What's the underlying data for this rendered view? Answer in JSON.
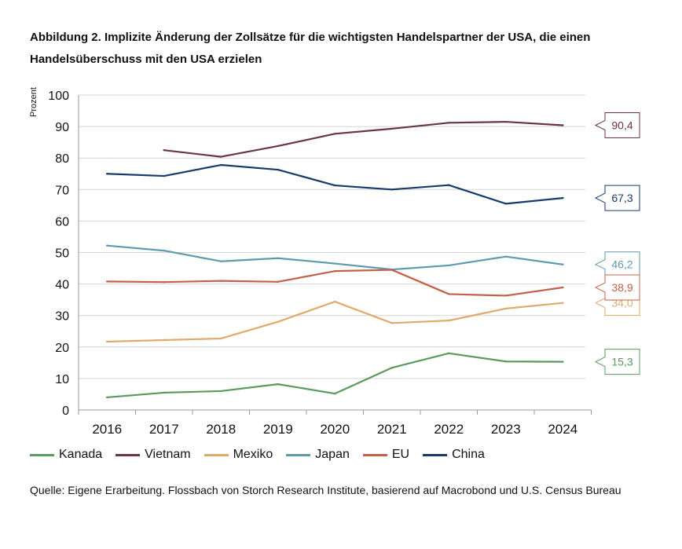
{
  "title": "Abbildung 2. Implizite Änderung der Zollsätze für die wichtigsten Handelspartner der USA, die einen Handelsüberschuss mit den USA erzielen",
  "source": "Quelle: Eigene Erarbeitung. Flossbach von Storch Research Institute, basierend auf Macrobond und U.S. Census Bureau",
  "chart_data": {
    "type": "line",
    "title": "Abbildung 2. Implizite Änderung der Zollsätze für die wichtigsten Handelspartner der USA, die einen Handelsüberschuss mit den USA erzielen",
    "xlabel": "",
    "ylabel": "Prozent",
    "ylim": [
      0,
      100
    ],
    "yticks": [
      "0",
      "10",
      "20",
      "30",
      "40",
      "50",
      "60",
      "70",
      "80",
      "90",
      "100"
    ],
    "categories": [
      "2016",
      "2017",
      "2018",
      "2019",
      "2020",
      "2021",
      "2022",
      "2023",
      "2024"
    ],
    "legend_position": "bottom",
    "series": [
      {
        "name": "Kanada",
        "color": "#5a9a5e",
        "values": [
          4.0,
          5.5,
          6.0,
          8.2,
          5.2,
          13.4,
          18.0,
          15.4,
          15.3
        ],
        "end_label": "15,3"
      },
      {
        "name": "Vietnam",
        "color": "#6b3444",
        "values": [
          null,
          82.5,
          80.4,
          83.8,
          87.7,
          89.3,
          91.2,
          91.5,
          90.4
        ],
        "end_label": "90,4"
      },
      {
        "name": "Mexiko",
        "color": "#e0aa6b",
        "values": [
          21.7,
          22.2,
          22.7,
          28.0,
          34.4,
          27.6,
          28.4,
          32.2,
          34.0
        ],
        "end_label": "34,0"
      },
      {
        "name": "Japan",
        "color": "#5f9aae",
        "values": [
          52.2,
          50.6,
          47.2,
          48.2,
          46.5,
          44.6,
          45.9,
          48.7,
          46.2
        ],
        "end_label": "46,2"
      },
      {
        "name": "EU",
        "color": "#c46048",
        "values": [
          40.8,
          40.6,
          41.0,
          40.7,
          44.1,
          44.5,
          36.8,
          36.3,
          38.9
        ],
        "end_label": "38,9"
      },
      {
        "name": "China",
        "color": "#173a6b",
        "values": [
          75.0,
          74.3,
          77.8,
          76.3,
          71.3,
          70.0,
          71.4,
          65.5,
          67.3
        ],
        "end_label": "67,3"
      }
    ]
  }
}
